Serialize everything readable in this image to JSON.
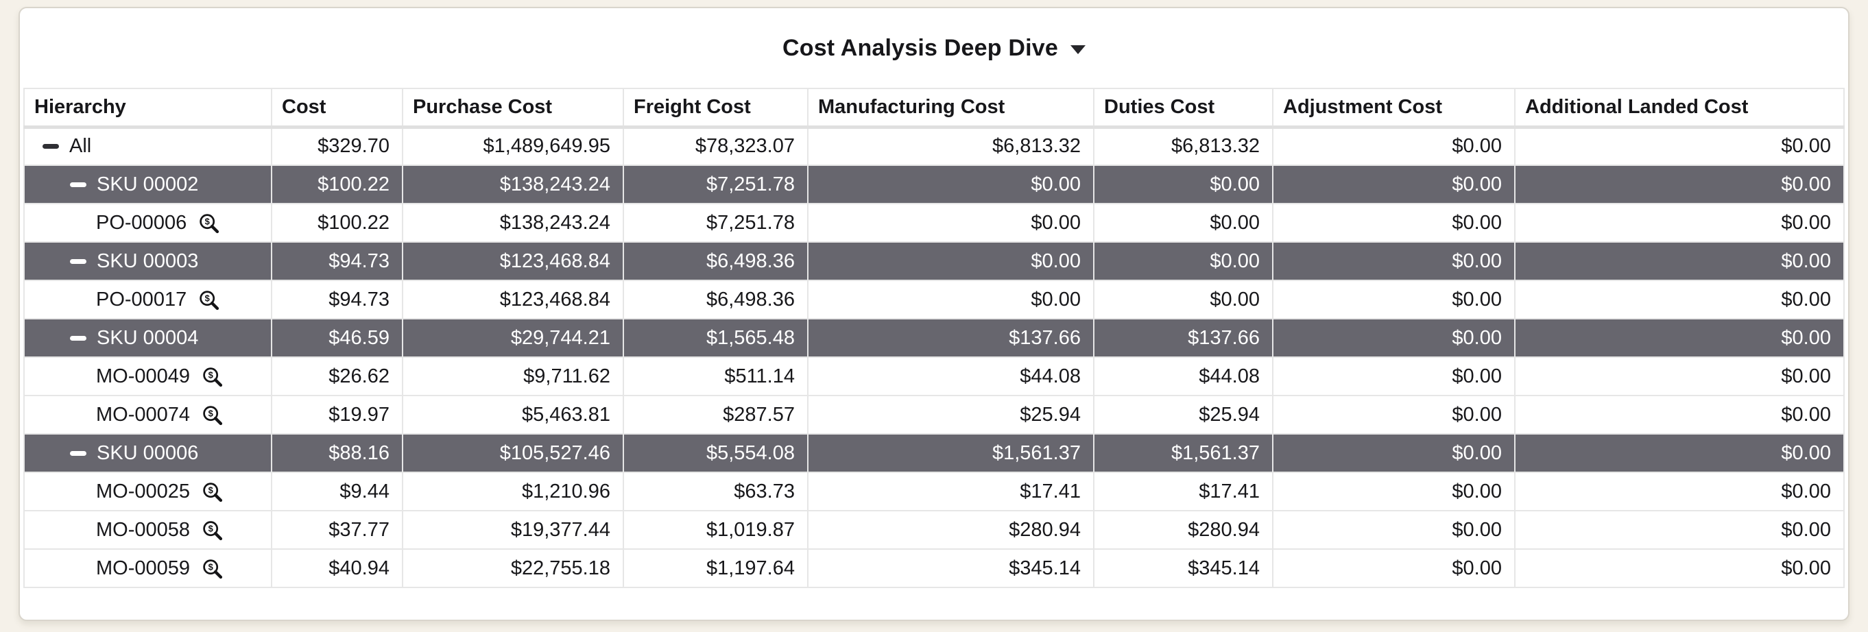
{
  "widget": {
    "title": "Cost Analysis Deep Dive",
    "title_caret_icon": "chevron-down-icon"
  },
  "icons": {
    "collapse": "minus-collapse-icon",
    "drill": "search-dollar-icon"
  },
  "colors": {
    "page_bg": "#f5f1e9",
    "card_bg": "#ffffff",
    "card_border": "#d9d5cc",
    "grid_line": "#e6e6e6",
    "row_dark_bg": "#67666e",
    "row_dark_text": "#ffffff",
    "text_main": "#17171a"
  },
  "table": {
    "columns": [
      {
        "key": "hierarchy",
        "label": "Hierarchy"
      },
      {
        "key": "cost",
        "label": "Cost"
      },
      {
        "key": "purchase_cost",
        "label": "Purchase Cost"
      },
      {
        "key": "freight_cost",
        "label": "Freight Cost"
      },
      {
        "key": "manufacturing_cost",
        "label": "Manufacturing Cost"
      },
      {
        "key": "duties_cost",
        "label": "Duties Cost"
      },
      {
        "key": "adjustment_cost",
        "label": "Adjustment Cost"
      },
      {
        "key": "additional_landed_cost",
        "label": "Additional Landed Cost"
      }
    ],
    "rows": [
      {
        "hierarchy": "All",
        "level": 0,
        "highlighted": false,
        "collapse_icon": true,
        "drill_icon": false,
        "cost": "$329.70",
        "purchase_cost": "$1,489,649.95",
        "freight_cost": "$78,323.07",
        "manufacturing_cost": "$6,813.32",
        "duties_cost": "$6,813.32",
        "adjustment_cost": "$0.00",
        "additional_landed_cost": "$0.00"
      },
      {
        "hierarchy": "SKU 00002",
        "level": 1,
        "highlighted": true,
        "collapse_icon": true,
        "drill_icon": false,
        "cost": "$100.22",
        "purchase_cost": "$138,243.24",
        "freight_cost": "$7,251.78",
        "manufacturing_cost": "$0.00",
        "duties_cost": "$0.00",
        "adjustment_cost": "$0.00",
        "additional_landed_cost": "$0.00"
      },
      {
        "hierarchy": "PO-00006",
        "level": 2,
        "highlighted": false,
        "collapse_icon": false,
        "drill_icon": true,
        "cost": "$100.22",
        "purchase_cost": "$138,243.24",
        "freight_cost": "$7,251.78",
        "manufacturing_cost": "$0.00",
        "duties_cost": "$0.00",
        "adjustment_cost": "$0.00",
        "additional_landed_cost": "$0.00"
      },
      {
        "hierarchy": "SKU 00003",
        "level": 1,
        "highlighted": true,
        "collapse_icon": true,
        "drill_icon": false,
        "cost": "$94.73",
        "purchase_cost": "$123,468.84",
        "freight_cost": "$6,498.36",
        "manufacturing_cost": "$0.00",
        "duties_cost": "$0.00",
        "adjustment_cost": "$0.00",
        "additional_landed_cost": "$0.00"
      },
      {
        "hierarchy": "PO-00017",
        "level": 2,
        "highlighted": false,
        "collapse_icon": false,
        "drill_icon": true,
        "cost": "$94.73",
        "purchase_cost": "$123,468.84",
        "freight_cost": "$6,498.36",
        "manufacturing_cost": "$0.00",
        "duties_cost": "$0.00",
        "adjustment_cost": "$0.00",
        "additional_landed_cost": "$0.00"
      },
      {
        "hierarchy": "SKU 00004",
        "level": 1,
        "highlighted": true,
        "collapse_icon": true,
        "drill_icon": false,
        "cost": "$46.59",
        "purchase_cost": "$29,744.21",
        "freight_cost": "$1,565.48",
        "manufacturing_cost": "$137.66",
        "duties_cost": "$137.66",
        "adjustment_cost": "$0.00",
        "additional_landed_cost": "$0.00"
      },
      {
        "hierarchy": "MO-00049",
        "level": 2,
        "highlighted": false,
        "collapse_icon": false,
        "drill_icon": true,
        "cost": "$26.62",
        "purchase_cost": "$9,711.62",
        "freight_cost": "$511.14",
        "manufacturing_cost": "$44.08",
        "duties_cost": "$44.08",
        "adjustment_cost": "$0.00",
        "additional_landed_cost": "$0.00"
      },
      {
        "hierarchy": "MO-00074",
        "level": 2,
        "highlighted": false,
        "collapse_icon": false,
        "drill_icon": true,
        "cost": "$19.97",
        "purchase_cost": "$5,463.81",
        "freight_cost": "$287.57",
        "manufacturing_cost": "$25.94",
        "duties_cost": "$25.94",
        "adjustment_cost": "$0.00",
        "additional_landed_cost": "$0.00"
      },
      {
        "hierarchy": "SKU 00006",
        "level": 1,
        "highlighted": true,
        "collapse_icon": true,
        "drill_icon": false,
        "cost": "$88.16",
        "purchase_cost": "$105,527.46",
        "freight_cost": "$5,554.08",
        "manufacturing_cost": "$1,561.37",
        "duties_cost": "$1,561.37",
        "adjustment_cost": "$0.00",
        "additional_landed_cost": "$0.00"
      },
      {
        "hierarchy": "MO-00025",
        "level": 2,
        "highlighted": false,
        "collapse_icon": false,
        "drill_icon": true,
        "cost": "$9.44",
        "purchase_cost": "$1,210.96",
        "freight_cost": "$63.73",
        "manufacturing_cost": "$17.41",
        "duties_cost": "$17.41",
        "adjustment_cost": "$0.00",
        "additional_landed_cost": "$0.00"
      },
      {
        "hierarchy": "MO-00058",
        "level": 2,
        "highlighted": false,
        "collapse_icon": false,
        "drill_icon": true,
        "cost": "$37.77",
        "purchase_cost": "$19,377.44",
        "freight_cost": "$1,019.87",
        "manufacturing_cost": "$280.94",
        "duties_cost": "$280.94",
        "adjustment_cost": "$0.00",
        "additional_landed_cost": "$0.00"
      },
      {
        "hierarchy": "MO-00059",
        "level": 2,
        "highlighted": false,
        "collapse_icon": false,
        "drill_icon": true,
        "cost": "$40.94",
        "purchase_cost": "$22,755.18",
        "freight_cost": "$1,197.64",
        "manufacturing_cost": "$345.14",
        "duties_cost": "$345.14",
        "adjustment_cost": "$0.00",
        "additional_landed_cost": "$0.00"
      }
    ]
  }
}
